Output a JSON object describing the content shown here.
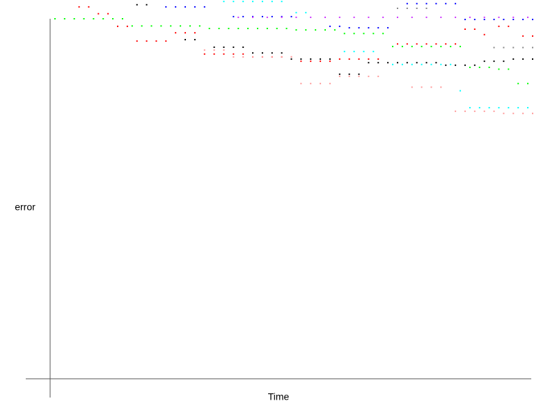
{
  "chart_data": {
    "type": "scatter",
    "x_label": "Time",
    "y_label": "error",
    "xlim": [
      0,
      100
    ],
    "ylim": [
      0,
      100
    ],
    "series": [
      {
        "color": "#00ff00",
        "x": [
          1,
          3,
          5,
          7,
          9,
          11,
          13,
          15,
          17,
          19,
          21,
          23,
          25,
          27,
          29,
          31,
          33,
          35,
          37,
          39,
          41,
          43,
          45,
          47,
          49,
          51,
          53,
          55,
          57,
          59,
          61,
          63,
          65,
          67,
          69,
          71,
          73,
          75,
          77,
          79,
          81,
          83,
          85,
          87,
          89,
          91,
          93,
          95,
          97,
          99
        ],
        "values": [
          100,
          100,
          100,
          100,
          100,
          100,
          100,
          100,
          98,
          98,
          98,
          98,
          98,
          98,
          98,
          98,
          97.3,
          97.3,
          97.3,
          97.3,
          97.3,
          97.3,
          97.3,
          97.3,
          97.3,
          96.9,
          96.9,
          96.9,
          96.9,
          96.9,
          95.9,
          95.9,
          95.9,
          95.9,
          95.9,
          92.3,
          92.3,
          92.3,
          92.3,
          92.3,
          92.3,
          92.3,
          92.3,
          86.5,
          86.5,
          86.5,
          86,
          86,
          82,
          82
        ]
      },
      {
        "color": "#ff0000",
        "x": [
          6,
          8,
          10,
          12,
          14,
          16,
          18,
          20,
          22,
          24,
          26,
          28,
          30,
          32,
          34,
          36,
          38,
          40,
          42,
          44,
          46,
          48,
          50,
          52,
          54,
          56,
          58,
          60,
          62,
          64,
          66,
          68,
          72,
          74,
          76,
          78,
          80,
          82,
          84,
          86,
          88,
          90,
          93,
          95,
          98,
          100
        ],
        "values": [
          103.3,
          103.3,
          101.4,
          101.4,
          97.9,
          97.9,
          93.8,
          93.8,
          93.8,
          93.8,
          96.1,
          96.1,
          96.1,
          90.2,
          90.2,
          90.2,
          90.2,
          90.2,
          89.4,
          89.4,
          89.4,
          89.4,
          89.4,
          88.2,
          88.2,
          88.2,
          88.2,
          88.8,
          88.8,
          88.8,
          88.8,
          88.8,
          93,
          93,
          93,
          93,
          93,
          93,
          93,
          97.1,
          97.1,
          95.6,
          97.9,
          97.9,
          95.2,
          95.2
        ]
      },
      {
        "color": "#000000",
        "x": [
          18,
          20,
          28,
          30,
          34,
          36,
          38,
          40,
          42,
          44,
          46,
          48,
          50,
          52,
          54,
          56,
          58,
          60,
          62,
          64,
          66,
          68,
          70,
          72,
          74,
          76,
          78,
          80,
          82,
          84,
          86,
          88,
          90,
          92,
          94,
          96,
          98,
          100
        ],
        "values": [
          103.9,
          103.9,
          94.2,
          94.2,
          92.1,
          92.1,
          92.1,
          92.1,
          90.5,
          90.5,
          90.5,
          90.5,
          88.8,
          88.8,
          88.8,
          88.8,
          88.8,
          84.6,
          84.6,
          84.6,
          87.8,
          87.8,
          87.8,
          87.8,
          87.8,
          87.8,
          87.8,
          87.8,
          87.1,
          87.1,
          87.1,
          87.1,
          88.2,
          88.2,
          88.2,
          88.8,
          88.8,
          88.8
        ]
      },
      {
        "color": "#ff9999",
        "x": [
          32,
          34,
          36,
          38,
          40,
          42,
          44,
          46,
          48,
          50,
          52,
          54,
          56,
          58,
          60,
          62,
          64,
          66,
          68,
          75,
          77,
          79,
          81,
          84,
          86,
          88,
          90,
          92,
          94,
          96,
          98,
          100
        ],
        "values": [
          91.3,
          91.3,
          91.3,
          89.4,
          89.4,
          89.4,
          89.4,
          89.4,
          89.4,
          89.4,
          82,
          82,
          82,
          82,
          84,
          84,
          84,
          84,
          84,
          81,
          81,
          81,
          81,
          74.3,
          74.3,
          74.3,
          74.3,
          74.3,
          73.7,
          73.7,
          73.7,
          73.7
        ]
      },
      {
        "color": "#00ffff",
        "x": [
          36,
          38,
          40,
          42,
          44,
          46,
          48,
          51,
          53,
          61,
          63,
          65,
          67,
          71,
          73,
          75,
          77,
          79,
          81,
          83,
          85,
          87,
          89,
          91,
          93,
          95,
          97,
          99
        ],
        "values": [
          104.8,
          104.8,
          104.8,
          104.8,
          104.8,
          104.8,
          104.8,
          101.7,
          101.7,
          90.9,
          90.9,
          90.9,
          90.9,
          87.3,
          87.3,
          87.3,
          87.3,
          87.3,
          87.3,
          87.3,
          80,
          75.3,
          75.3,
          75.3,
          75.3,
          75.3,
          75.3,
          75.3
        ]
      },
      {
        "color": "#0000ff",
        "x": [
          24,
          26,
          28,
          30,
          32,
          38,
          40,
          42,
          44,
          46,
          48,
          50,
          58,
          60,
          62,
          64,
          66,
          68,
          70,
          74,
          76,
          78,
          80,
          82,
          84,
          86,
          88,
          90,
          92,
          94,
          96,
          98,
          100
        ],
        "values": [
          103.3,
          103.3,
          103.3,
          103.3,
          103.3,
          100.6,
          100.6,
          100.6,
          100.6,
          100.6,
          100.6,
          100.6,
          97.9,
          97.9,
          97.5,
          97.5,
          97.5,
          97.5,
          97.5,
          104.2,
          104.2,
          104.2,
          104.2,
          104.2,
          104.2,
          99.8,
          99.8,
          99.8,
          99.8,
          99.8,
          99.8,
          99.8,
          99.8
        ]
      },
      {
        "color": "#cc33ff",
        "x": [
          39,
          42,
          45,
          48,
          51,
          54,
          57,
          60,
          63,
          66,
          69,
          72,
          75,
          78,
          81,
          84,
          87,
          90,
          93,
          96,
          99
        ],
        "values": [
          100.4,
          100.4,
          100.4,
          100.4,
          100.4,
          100.4,
          100.4,
          100.4,
          100.4,
          100.4,
          100.4,
          100.4,
          100.4,
          100.4,
          100.4,
          100.4,
          100.4,
          100.4,
          100.4,
          100.4,
          100.4
        ]
      },
      {
        "color": "#888888",
        "x": [
          72,
          74,
          76,
          78,
          92,
          94,
          96,
          98,
          100
        ],
        "values": [
          102.9,
          102.9,
          102.9,
          102.9,
          92,
          92,
          92,
          92,
          92
        ]
      }
    ]
  }
}
